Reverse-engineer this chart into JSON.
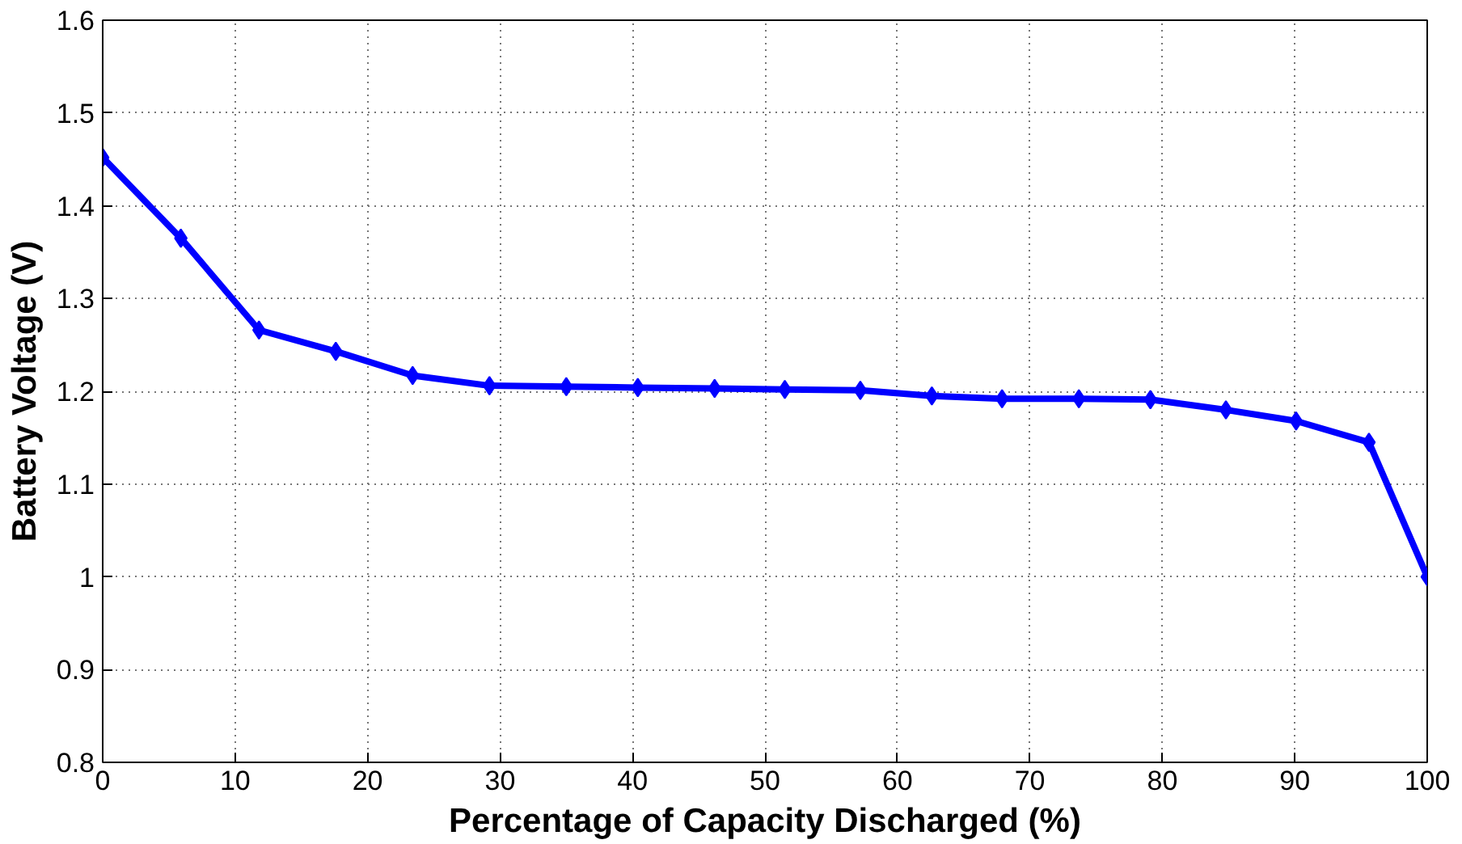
{
  "chart_data": {
    "type": "line",
    "xlabel": "Percentage of Capacity Discharged (%)",
    "ylabel": "Battery Voltage (V)",
    "x": [
      0,
      5.9,
      11.8,
      17.6,
      23.4,
      29.2,
      35.0,
      40.4,
      46.2,
      51.5,
      57.2,
      62.6,
      67.9,
      73.7,
      79.1,
      84.8,
      90.1,
      95.6,
      100
    ],
    "series": [
      {
        "color": "#0000ff",
        "values": [
          1.452,
          1.365,
          1.266,
          1.243,
          1.217,
          1.206,
          1.205,
          1.204,
          1.203,
          1.202,
          1.201,
          1.195,
          1.192,
          1.192,
          1.191,
          1.18,
          1.168,
          1.145,
          1.0
        ]
      }
    ],
    "xlim": [
      0,
      100
    ],
    "ylim": [
      0.8,
      1.6
    ],
    "xticks": [
      0,
      10,
      20,
      30,
      40,
      50,
      60,
      70,
      80,
      90,
      100
    ],
    "yticks": [
      0.8,
      0.9,
      1,
      1.1,
      1.2,
      1.3,
      1.4,
      1.5,
      1.6
    ],
    "grid": true,
    "marker": "diamond",
    "line_style": "solid"
  }
}
